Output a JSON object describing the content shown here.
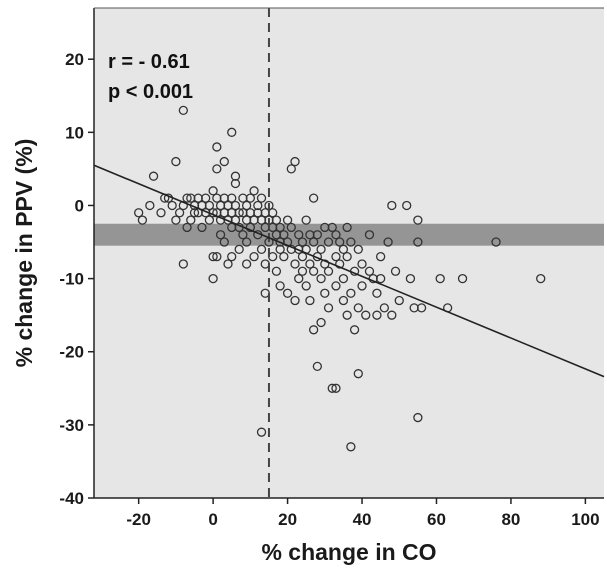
{
  "chart_data": {
    "type": "scatter",
    "title": "",
    "xlabel": "%  change in CO",
    "ylabel": "% change in PPV (%)",
    "xlim": [
      -32,
      105
    ],
    "ylim": [
      -40,
      27
    ],
    "xticks": [
      -20,
      0,
      20,
      40,
      60,
      80,
      100
    ],
    "yticks": [
      20,
      10,
      0,
      -10,
      -20,
      -30,
      -40
    ],
    "grid": false,
    "annotations": [
      "r = - 0.61",
      "p < 0.001"
    ],
    "regression_line": {
      "x": [
        -32,
        105
      ],
      "y": [
        5.5,
        -23.4
      ]
    },
    "reference_vertical_line_x": 15,
    "reference_band_y": [
      -5.5,
      -2.5
    ],
    "colors": {
      "plot_background": "#e6e6e6",
      "band": "#8c8c8c",
      "points": "#333333",
      "line": "#222222"
    },
    "series": [
      {
        "points": [
          [
            -20,
            -1
          ],
          [
            -19,
            -2
          ],
          [
            -17,
            0
          ],
          [
            -16,
            4
          ],
          [
            -14,
            -1
          ],
          [
            -13,
            1
          ],
          [
            -12,
            1
          ],
          [
            -11,
            0
          ],
          [
            -10,
            6
          ],
          [
            -10,
            -2
          ],
          [
            -9,
            -1
          ],
          [
            -8,
            -8
          ],
          [
            -8,
            13
          ],
          [
            -8,
            0
          ],
          [
            -7,
            1
          ],
          [
            -7,
            -3
          ],
          [
            -6,
            -2
          ],
          [
            -6,
            1
          ],
          [
            -5,
            0
          ],
          [
            -5,
            -1
          ],
          [
            -4,
            1
          ],
          [
            -4,
            -1
          ],
          [
            -3,
            0
          ],
          [
            -3,
            -3
          ],
          [
            -2,
            1
          ],
          [
            -2,
            -1
          ],
          [
            -1,
            0
          ],
          [
            -1,
            -2
          ],
          [
            0,
            2
          ],
          [
            0,
            -1
          ],
          [
            0,
            -7
          ],
          [
            0,
            -10
          ],
          [
            1,
            1
          ],
          [
            1,
            -1
          ],
          [
            1,
            8
          ],
          [
            1,
            -7
          ],
          [
            1,
            5
          ],
          [
            2,
            0
          ],
          [
            2,
            -2
          ],
          [
            2,
            -4
          ],
          [
            3,
            1
          ],
          [
            3,
            -1
          ],
          [
            3,
            -5
          ],
          [
            3,
            6
          ],
          [
            4,
            0
          ],
          [
            4,
            -2
          ],
          [
            4,
            -8
          ],
          [
            5,
            1
          ],
          [
            5,
            -1
          ],
          [
            5,
            10
          ],
          [
            5,
            -3
          ],
          [
            5,
            -7
          ],
          [
            6,
            0
          ],
          [
            6,
            -2
          ],
          [
            6,
            3
          ],
          [
            6,
            4
          ],
          [
            7,
            -1
          ],
          [
            7,
            -3
          ],
          [
            7,
            -6
          ],
          [
            8,
            1
          ],
          [
            8,
            -1
          ],
          [
            8,
            -4
          ],
          [
            9,
            0
          ],
          [
            9,
            -2
          ],
          [
            9,
            -5
          ],
          [
            9,
            -8
          ],
          [
            10,
            1
          ],
          [
            10,
            -1
          ],
          [
            10,
            -3
          ],
          [
            11,
            -2
          ],
          [
            11,
            2
          ],
          [
            11,
            -7
          ],
          [
            12,
            0
          ],
          [
            12,
            -1
          ],
          [
            12,
            -4
          ],
          [
            13,
            1
          ],
          [
            13,
            -2
          ],
          [
            13,
            -6
          ],
          [
            13,
            -31
          ],
          [
            14,
            -1
          ],
          [
            14,
            -3
          ],
          [
            14,
            -8
          ],
          [
            14,
            -12
          ],
          [
            15,
            0
          ],
          [
            15,
            -2
          ],
          [
            15,
            -5
          ],
          [
            16,
            -1
          ],
          [
            16,
            -3
          ],
          [
            16,
            -7
          ],
          [
            17,
            -2
          ],
          [
            17,
            -4
          ],
          [
            17,
            -9
          ],
          [
            18,
            -3
          ],
          [
            18,
            -5
          ],
          [
            18,
            -6
          ],
          [
            18,
            -11
          ],
          [
            19,
            -4
          ],
          [
            19,
            -7
          ],
          [
            20,
            -2
          ],
          [
            20,
            -5
          ],
          [
            20,
            -12
          ],
          [
            21,
            5
          ],
          [
            21,
            -3
          ],
          [
            21,
            -6
          ],
          [
            22,
            6
          ],
          [
            22,
            -8
          ],
          [
            22,
            -13
          ],
          [
            23,
            -4
          ],
          [
            23,
            -6
          ],
          [
            23,
            -10
          ],
          [
            24,
            -5
          ],
          [
            24,
            -7
          ],
          [
            24,
            -9
          ],
          [
            25,
            -2
          ],
          [
            25,
            -6
          ],
          [
            25,
            -11
          ],
          [
            26,
            -4
          ],
          [
            26,
            -8
          ],
          [
            26,
            -13
          ],
          [
            27,
            1
          ],
          [
            27,
            -5
          ],
          [
            27,
            -9
          ],
          [
            27,
            -17
          ],
          [
            28,
            -4
          ],
          [
            28,
            -7
          ],
          [
            28,
            -22
          ],
          [
            29,
            -6
          ],
          [
            29,
            -10
          ],
          [
            29,
            -16
          ],
          [
            30,
            -3
          ],
          [
            30,
            -8
          ],
          [
            30,
            -12
          ],
          [
            31,
            -5
          ],
          [
            31,
            -9
          ],
          [
            31,
            -14
          ],
          [
            32,
            -25
          ],
          [
            32,
            -3
          ],
          [
            33,
            -4
          ],
          [
            33,
            -7
          ],
          [
            33,
            -11
          ],
          [
            33,
            -25
          ],
          [
            34,
            -5
          ],
          [
            34,
            -8
          ],
          [
            35,
            -6
          ],
          [
            35,
            -10
          ],
          [
            35,
            -13
          ],
          [
            36,
            -3
          ],
          [
            36,
            -7
          ],
          [
            36,
            -15
          ],
          [
            37,
            -33
          ],
          [
            37,
            -5
          ],
          [
            37,
            -12
          ],
          [
            38,
            -17
          ],
          [
            38,
            -9
          ],
          [
            39,
            -23
          ],
          [
            39,
            -6
          ],
          [
            39,
            -14
          ],
          [
            40,
            -8
          ],
          [
            40,
            -11
          ],
          [
            41,
            -15
          ],
          [
            42,
            -4
          ],
          [
            42,
            -9
          ],
          [
            43,
            -10
          ],
          [
            44,
            -12
          ],
          [
            44,
            -15
          ],
          [
            45,
            -7
          ],
          [
            45,
            -10
          ],
          [
            46,
            -14
          ],
          [
            47,
            -5
          ],
          [
            48,
            0
          ],
          [
            48,
            -15
          ],
          [
            49,
            -9
          ],
          [
            50,
            -13
          ],
          [
            52,
            0
          ],
          [
            53,
            -10
          ],
          [
            54,
            -14
          ],
          [
            55,
            -2
          ],
          [
            55,
            -5
          ],
          [
            55,
            -29
          ],
          [
            56,
            -14
          ],
          [
            61,
            -10
          ],
          [
            63,
            -14
          ],
          [
            67,
            -10
          ],
          [
            76,
            -5
          ],
          [
            88,
            -10
          ]
        ]
      }
    ]
  }
}
